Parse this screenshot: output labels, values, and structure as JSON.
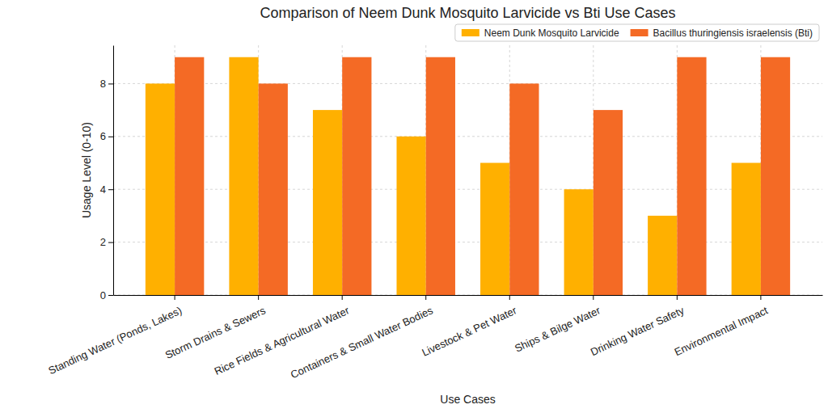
{
  "chart_data": {
    "type": "bar",
    "title": "Comparison of Neem Dunk Mosquito Larvicide vs Bti Use Cases",
    "x_label": "Use Cases",
    "y_label": "Usage Level (0-10)",
    "categories": [
      "Standing Water (Ponds, Lakes)",
      "Storm Drains & Sewers",
      "Rice Fields & Agricultural Water",
      "Containers & Small Water Bodies",
      "Livestock & Pet Water",
      "Ships & Bilge Water",
      "Drinking Water Safety",
      "Environmental Impact"
    ],
    "series": [
      {
        "name": "Neem Dunk Mosquito Larvicide",
        "color": "#ffb000",
        "values": [
          8,
          9,
          7,
          6,
          5,
          4,
          3,
          5
        ]
      },
      {
        "name": "Bacillus thuringiensis israelensis (Bti)",
        "color": "#f46a25",
        "values": [
          9,
          8,
          9,
          9,
          8,
          7,
          9,
          9
        ]
      }
    ],
    "ylim": [
      0,
      9.45
    ],
    "yticks": [
      0,
      2,
      4,
      6,
      8
    ],
    "grid": true,
    "legend": "upper right"
  }
}
